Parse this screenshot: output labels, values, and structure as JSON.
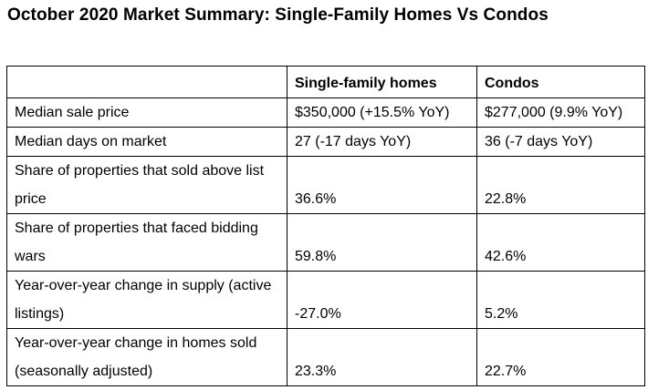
{
  "title": "October 2020 Market Summary: Single-Family Homes Vs Condos",
  "table": {
    "headers": [
      "",
      "Single-family homes",
      "Condos"
    ],
    "rows": [
      {
        "metric": "Median sale price",
        "single_family": "$350,000 (+15.5% YoY)",
        "condos": "$277,000 (9.9% YoY)"
      },
      {
        "metric": "Median days on market",
        "single_family": "27 (-17 days YoY)",
        "condos": "36 (-7 days YoY)"
      },
      {
        "metric": "Share of properties that sold above list price",
        "single_family": "36.6%",
        "condos": "22.8%"
      },
      {
        "metric": "Share of properties that faced bidding wars",
        "single_family": "59.8%",
        "condos": "42.6%"
      },
      {
        "metric": "Year-over-year change in supply (active listings)",
        "single_family": "-27.0%",
        "condos": "5.2%"
      },
      {
        "metric": "Year-over-year change in homes sold (seasonally adjusted)",
        "single_family": "23.3%",
        "condos": "22.7%"
      }
    ]
  }
}
